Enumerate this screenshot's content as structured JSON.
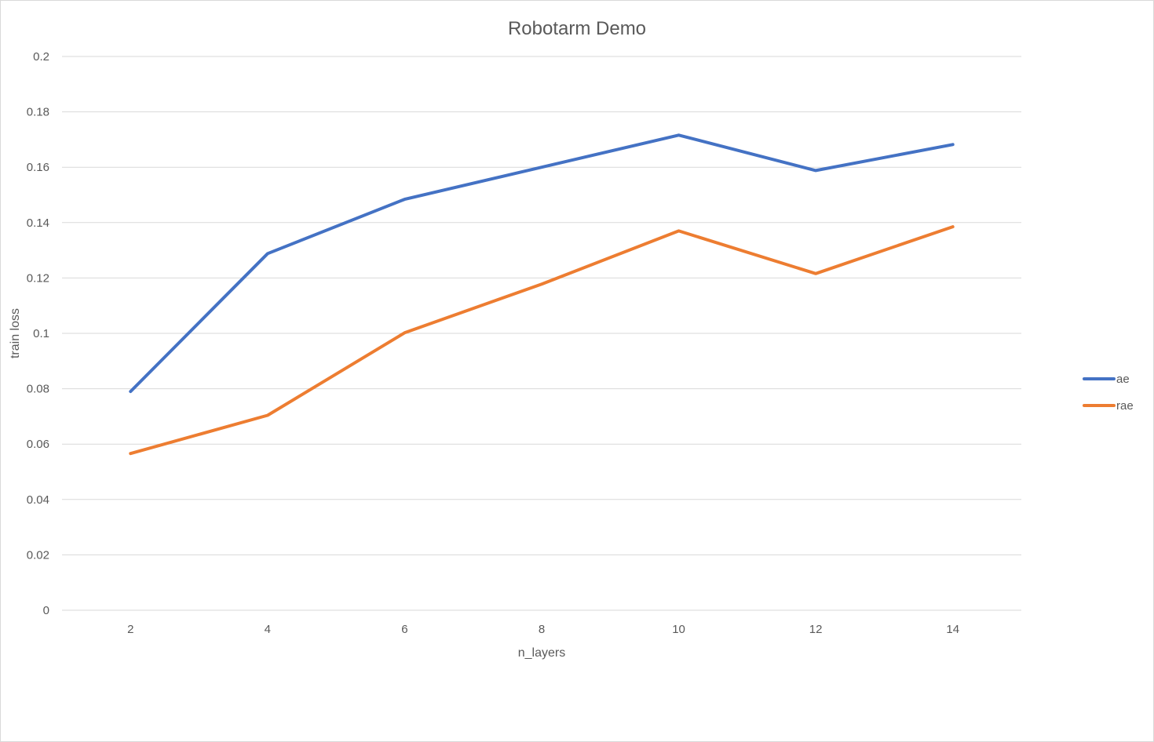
{
  "chart_data": {
    "type": "line",
    "title": "Robotarm Demo",
    "xlabel": "n_layers",
    "ylabel": "train loss",
    "x": [
      2,
      4,
      6,
      8,
      10,
      12,
      14
    ],
    "x_tick_labels": [
      "2",
      "4",
      "6",
      "8",
      "10",
      "12",
      "14"
    ],
    "y_tick_labels": [
      "0",
      "0.02",
      "0.04",
      "0.06",
      "0.08",
      "0.1",
      "0.12",
      "0.14",
      "0.16",
      "0.18",
      "0.2"
    ],
    "ylim": [
      0,
      0.2
    ],
    "grid": "horizontal",
    "legend_position": "right",
    "series": [
      {
        "name": "ae",
        "color": "#4472C4",
        "values": [
          0.079,
          0.1288,
          0.1484,
          0.16,
          0.1716,
          0.1588,
          0.1682
        ]
      },
      {
        "name": "rae",
        "color": "#ED7D31",
        "values": [
          0.0566,
          0.0704,
          0.1002,
          0.1178,
          0.137,
          0.1216,
          0.1385
        ]
      }
    ]
  }
}
